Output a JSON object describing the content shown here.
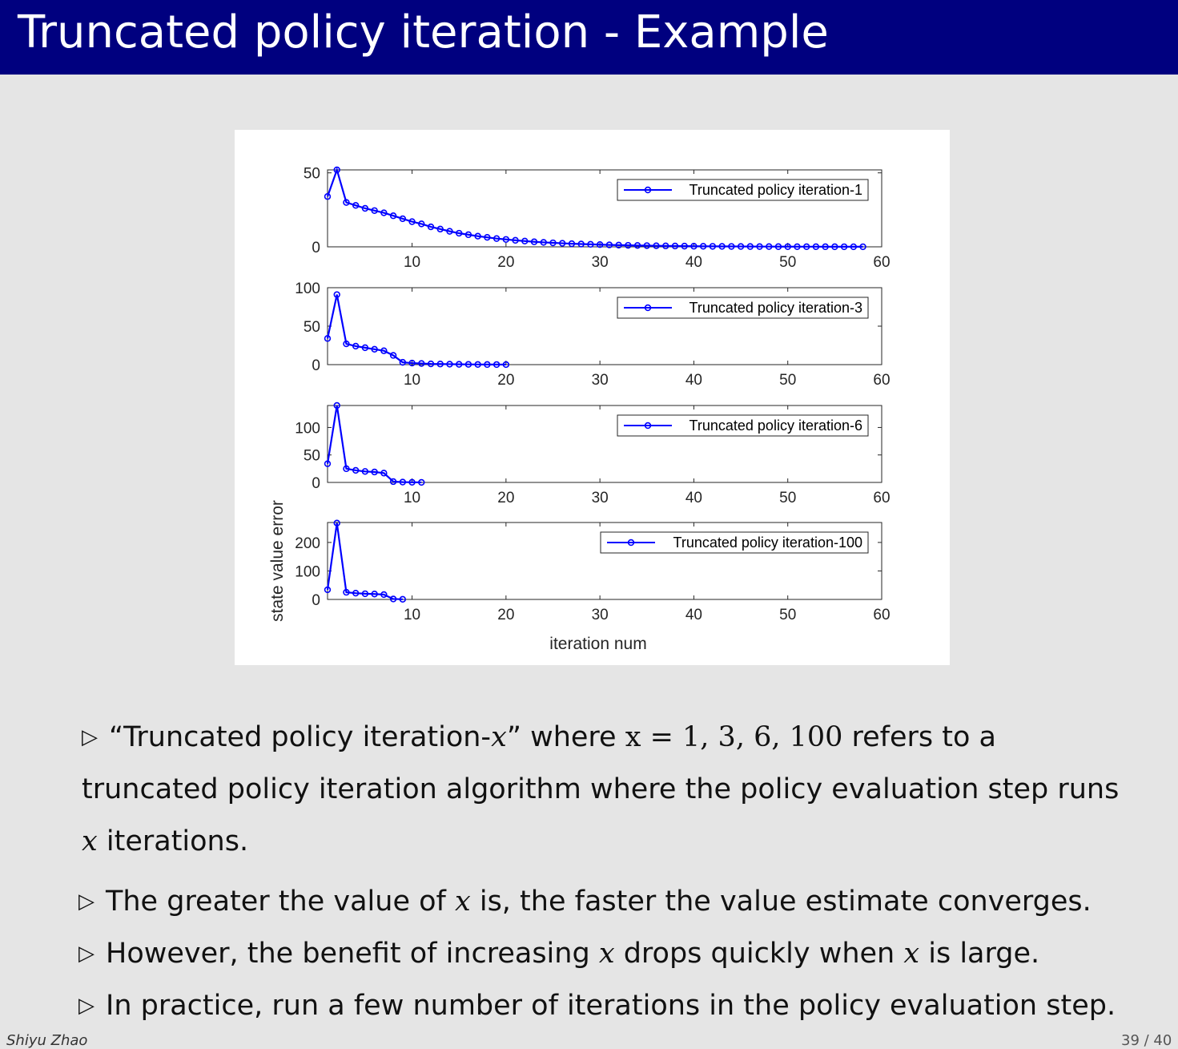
{
  "slide": {
    "title": "Truncated policy iteration - Example",
    "footer_author": "Shiyu Zhao",
    "page_number": "39 / 40"
  },
  "bullets": {
    "b1_a": "“Truncated policy iteration-",
    "b1_x": "x",
    "b1_b": "” where ",
    "b1_eq": "x = 1, 3, 6, 100",
    "b1_c": " refers to a",
    "b1_line2": "truncated policy iteration algorithm where the policy evaluation step runs",
    "b1_line3_x": "x",
    "b1_line3": " iterations.",
    "b2_a": "The greater the value of ",
    "b2_x": "x",
    "b2_b": " is, the faster the value estimate converges.",
    "b3_a": "However, the benefit of increasing ",
    "b3_x1": "x",
    "b3_b": " drops quickly when ",
    "b3_x2": "x",
    "b3_c": " is large.",
    "b4": "In practice, run a few number of iterations in the policy evaluation step."
  },
  "colors": {
    "header_bg": "#00007f",
    "series": "#0000ff",
    "slide_bg": "#e5e5e5"
  },
  "chart_data": {
    "type": "line",
    "xlabel": "iteration num",
    "ylabel": "state value error",
    "xlim": [
      1,
      60
    ],
    "xticks": [
      10,
      20,
      30,
      40,
      50,
      60
    ],
    "legend_placement": "top-right",
    "marker": "circle",
    "subplots": [
      {
        "name": "Truncated policy iteration-1",
        "ylim": [
          0,
          52
        ],
        "yticks": [
          0,
          50
        ],
        "x": [
          1,
          2,
          3,
          4,
          5,
          6,
          7,
          8,
          9,
          10,
          11,
          12,
          13,
          14,
          15,
          16,
          17,
          18,
          19,
          20,
          21,
          22,
          23,
          24,
          25,
          26,
          27,
          28,
          29,
          30,
          31,
          32,
          33,
          34,
          35,
          36,
          37,
          38,
          39,
          40,
          41,
          42,
          43,
          44,
          45,
          46,
          47,
          48,
          49,
          50,
          51,
          52,
          53,
          54,
          55,
          56,
          57,
          58
        ],
        "values": [
          34,
          52,
          30,
          28,
          26,
          24.5,
          23,
          21,
          19,
          17,
          15.5,
          13.5,
          12,
          10.5,
          9.2,
          8.2,
          7.2,
          6.4,
          5.6,
          5,
          4.4,
          3.9,
          3.4,
          3,
          2.7,
          2.4,
          2.1,
          1.9,
          1.7,
          1.5,
          1.3,
          1.15,
          1,
          0.9,
          0.8,
          0.7,
          0.62,
          0.55,
          0.48,
          0.42,
          0.37,
          0.33,
          0.29,
          0.26,
          0.23,
          0.2,
          0.18,
          0.16,
          0.14,
          0.12,
          0.11,
          0.1,
          0.09,
          0.08,
          0.07,
          0.06,
          0.05,
          0.05
        ]
      },
      {
        "name": "Truncated policy iteration-3",
        "ylim": [
          0,
          100
        ],
        "yticks": [
          0,
          50,
          100
        ],
        "x": [
          1,
          2,
          3,
          4,
          5,
          6,
          7,
          8,
          9,
          10,
          11,
          12,
          13,
          14,
          15,
          16,
          17,
          18,
          19,
          20
        ],
        "values": [
          34,
          91,
          27,
          24,
          22,
          20,
          18,
          12,
          3,
          2,
          1.5,
          1,
          0.8,
          0.6,
          0.4,
          0.3,
          0.2,
          0.15,
          0.1,
          0.05
        ]
      },
      {
        "name": "Truncated policy iteration-6",
        "ylim": [
          0,
          140
        ],
        "yticks": [
          0,
          50,
          100
        ],
        "x": [
          1,
          2,
          3,
          4,
          5,
          6,
          7,
          8,
          9,
          10,
          11
        ],
        "values": [
          34,
          140,
          25,
          22,
          20,
          19,
          17,
          1.5,
          0.6,
          0.3,
          0.1
        ]
      },
      {
        "name": "Truncated policy iteration-100",
        "ylim": [
          0,
          270
        ],
        "yticks": [
          0,
          100,
          200
        ],
        "x": [
          1,
          2,
          3,
          4,
          5,
          6,
          7,
          8,
          9
        ],
        "values": [
          34,
          268,
          25,
          22,
          20,
          19,
          17,
          1.5,
          0.5
        ]
      }
    ]
  }
}
